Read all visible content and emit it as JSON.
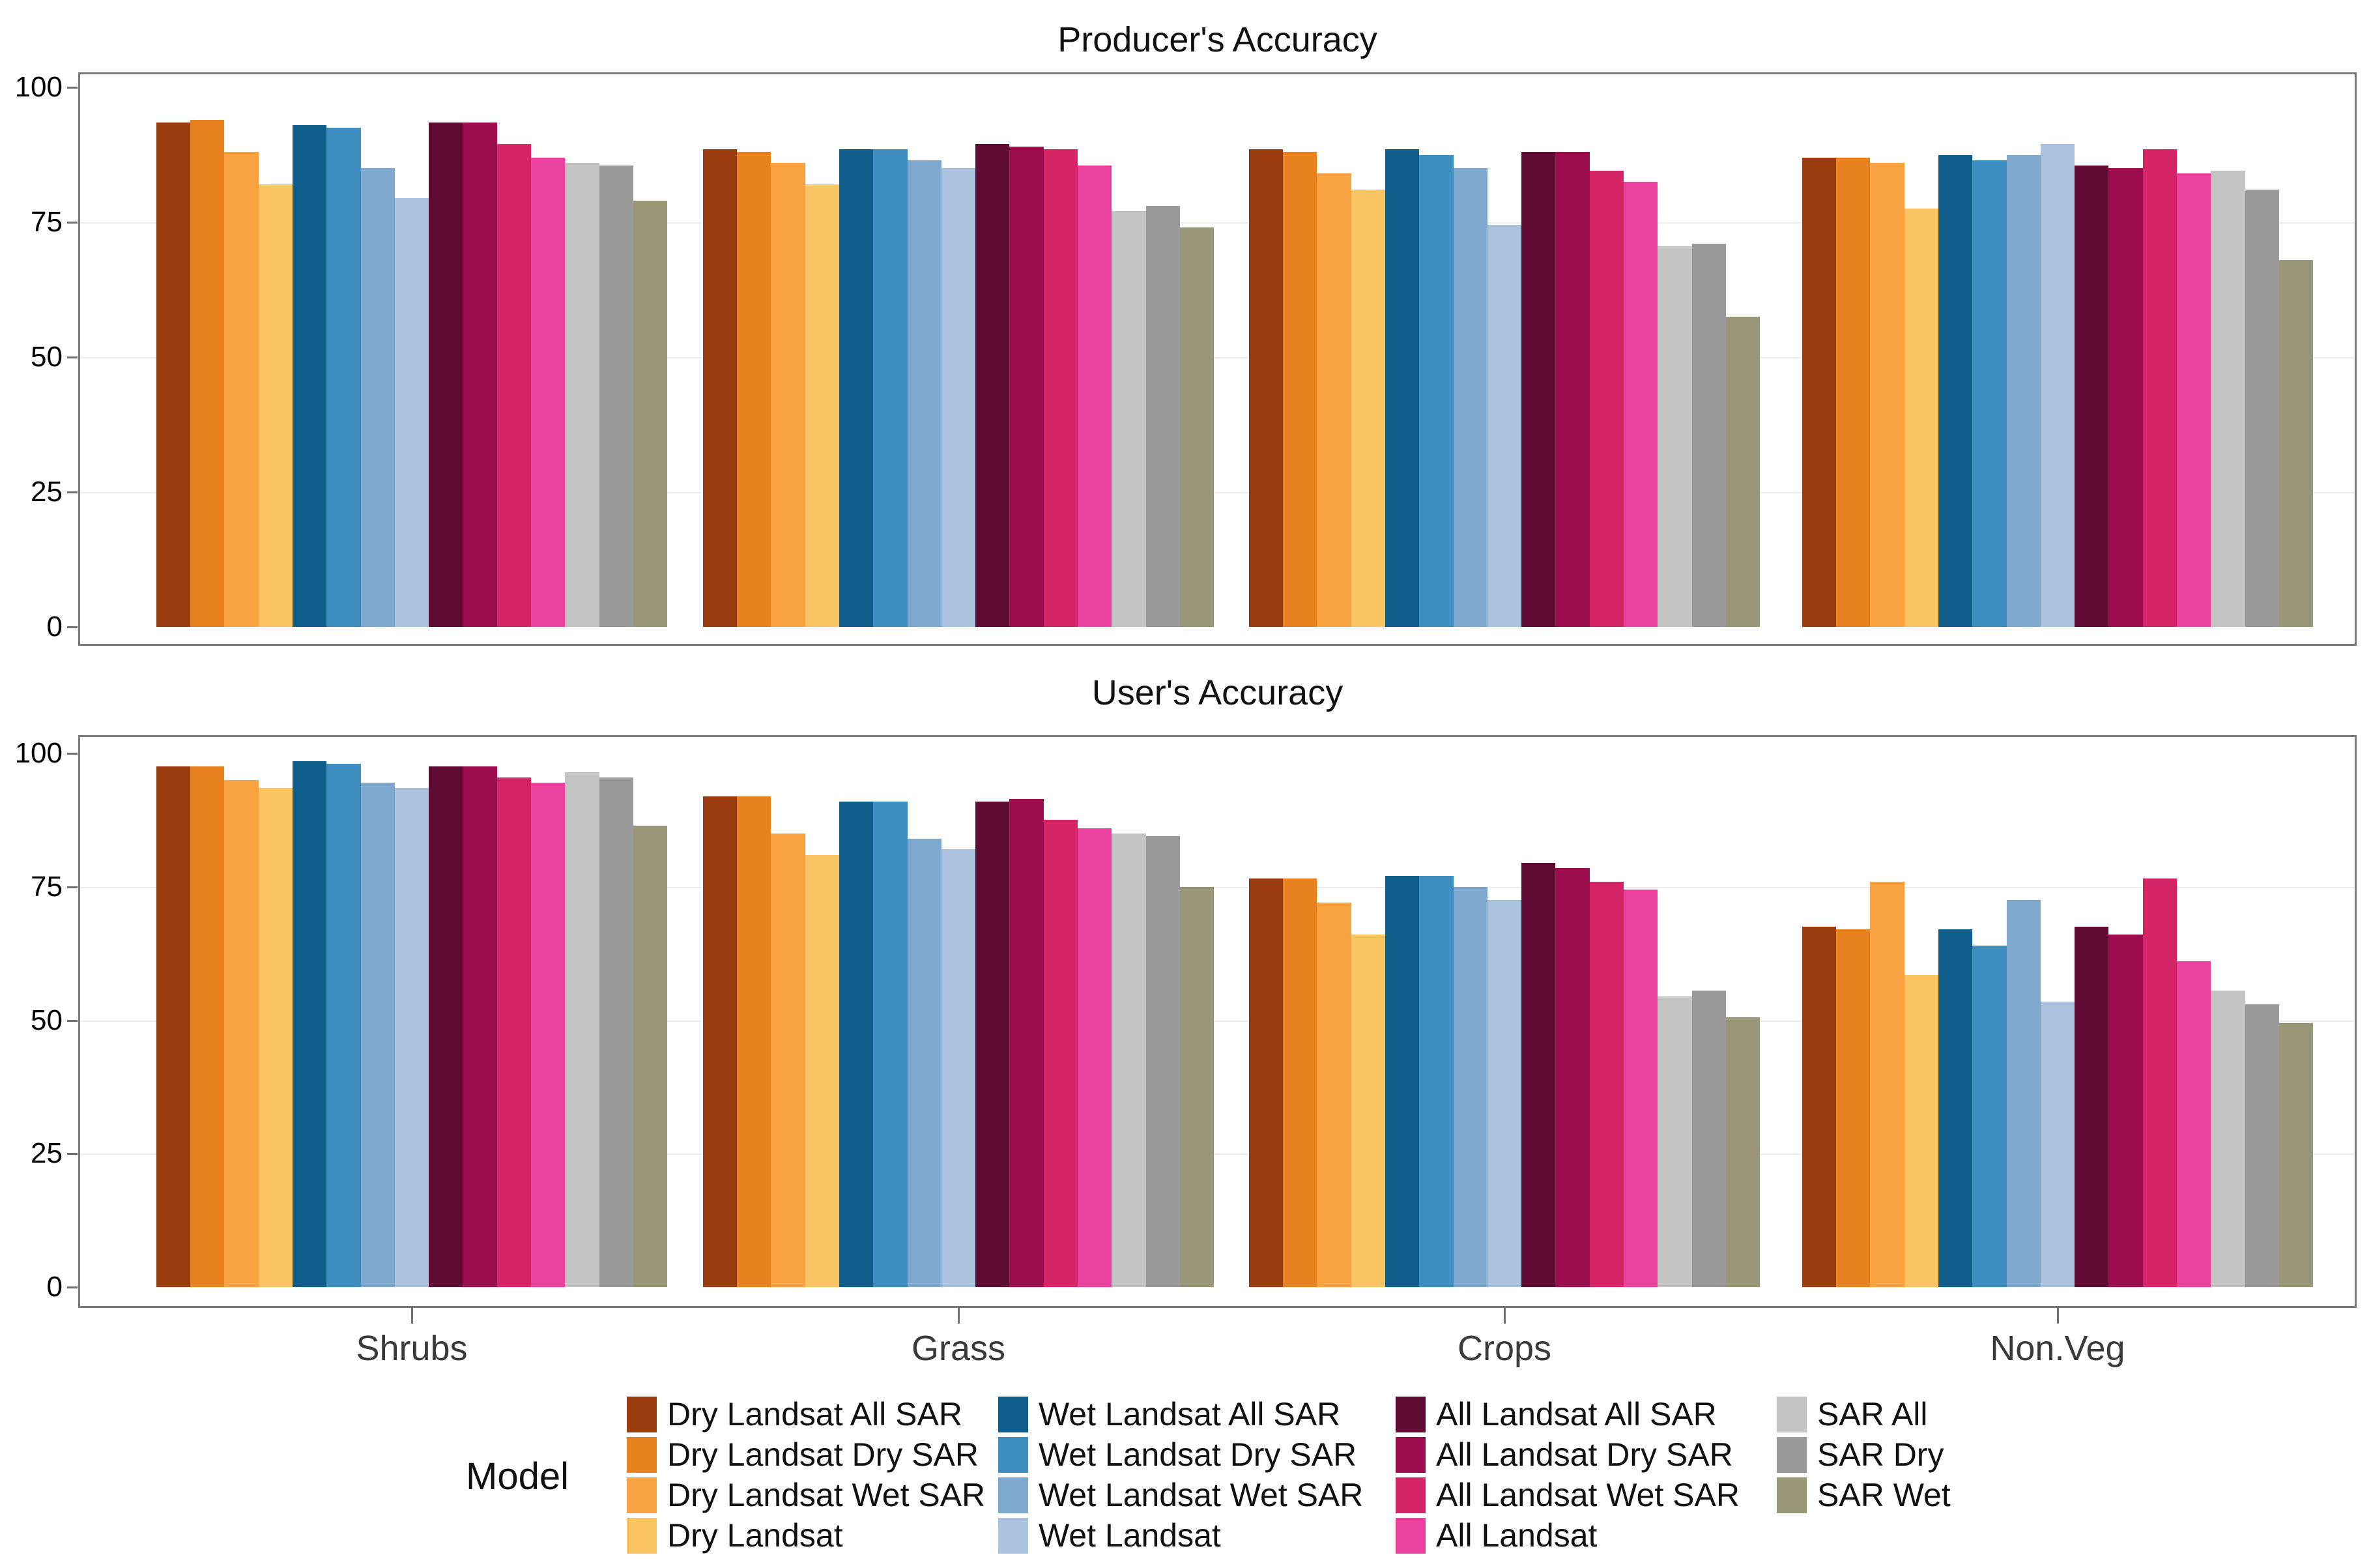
{
  "categories": [
    "Shrubs",
    "Grass",
    "Crops",
    "Non.Veg"
  ],
  "y_axis": {
    "range": [
      0,
      100
    ],
    "ticks": [
      0,
      25,
      50,
      75,
      100
    ],
    "gridlines": [
      25,
      50,
      75
    ]
  },
  "models": [
    {
      "name": "Dry Landsat All SAR",
      "color": "#9A3B10"
    },
    {
      "name": "Dry Landsat Dry SAR",
      "color": "#E8821F"
    },
    {
      "name": "Dry Landsat Wet SAR",
      "color": "#F9A242"
    },
    {
      "name": "Dry Landsat",
      "color": "#FBC462"
    },
    {
      "name": "Wet Landsat All SAR",
      "color": "#0F5E8C"
    },
    {
      "name": "Wet Landsat Dry SAR",
      "color": "#3E8EC0"
    },
    {
      "name": "Wet Landsat Wet SAR",
      "color": "#7FA8CE"
    },
    {
      "name": "Wet Landsat",
      "color": "#ACC3E0"
    },
    {
      "name": "All Landsat All SAR",
      "color": "#5F0B33"
    },
    {
      "name": "All Landsat Dry SAR",
      "color": "#9D0E4F"
    },
    {
      "name": "All Landsat Wet SAR",
      "color": "#D62566"
    },
    {
      "name": "All Landsat",
      "color": "#E9419D"
    },
    {
      "name": "SAR All",
      "color": "#C4C4C4"
    },
    {
      "name": "SAR Dry",
      "color": "#9A9A9A"
    },
    {
      "name": "SAR Wet",
      "color": "#9A9778"
    }
  ],
  "legend": {
    "title": "Model",
    "columns": [
      [
        "Dry Landsat All SAR",
        "Dry Landsat Dry SAR",
        "Dry Landsat Wet SAR",
        "Dry Landsat"
      ],
      [
        "Wet Landsat All SAR",
        "Wet Landsat Dry SAR",
        "Wet Landsat Wet SAR",
        "Wet Landsat"
      ],
      [
        "All Landsat All SAR",
        "All Landsat Dry SAR",
        "All Landsat Wet SAR",
        "All Landsat"
      ],
      [
        "SAR All",
        "SAR Dry",
        "SAR Wet"
      ]
    ]
  },
  "chart_data": [
    {
      "type": "bar",
      "title": "Producer's Accuracy",
      "categories": [
        "Shrubs",
        "Grass",
        "Crops",
        "Non.Veg"
      ],
      "ylim": [
        0,
        100
      ],
      "legend_position": "bottom",
      "series": [
        {
          "name": "Dry Landsat All SAR",
          "values": [
            93.5,
            88.5,
            88.5,
            87
          ]
        },
        {
          "name": "Dry Landsat Dry SAR",
          "values": [
            94,
            88,
            88,
            87
          ]
        },
        {
          "name": "Dry Landsat Wet SAR",
          "values": [
            88,
            86,
            84,
            86
          ]
        },
        {
          "name": "Dry Landsat",
          "values": [
            82,
            82,
            81,
            77.5
          ]
        },
        {
          "name": "Wet Landsat All SAR",
          "values": [
            93,
            88.5,
            88.5,
            87.5
          ]
        },
        {
          "name": "Wet Landsat Dry SAR",
          "values": [
            92.5,
            88.5,
            87.5,
            86.5
          ]
        },
        {
          "name": "Wet Landsat Wet SAR",
          "values": [
            85,
            86.5,
            85,
            87.5
          ]
        },
        {
          "name": "Wet Landsat",
          "values": [
            79.5,
            85,
            74.5,
            89.5
          ]
        },
        {
          "name": "All Landsat All SAR",
          "values": [
            93.5,
            89.5,
            88,
            85.5
          ]
        },
        {
          "name": "All Landsat Dry SAR",
          "values": [
            93.5,
            89,
            88,
            85
          ]
        },
        {
          "name": "All Landsat Wet SAR",
          "values": [
            89.5,
            88.5,
            84.5,
            88.5
          ]
        },
        {
          "name": "All Landsat",
          "values": [
            87,
            85.5,
            82.5,
            84
          ]
        },
        {
          "name": "SAR All",
          "values": [
            86,
            77,
            70.5,
            84.5
          ]
        },
        {
          "name": "SAR Dry",
          "values": [
            85.5,
            78,
            71,
            81
          ]
        },
        {
          "name": "SAR Wet",
          "values": [
            79,
            74,
            57.5,
            68
          ]
        }
      ]
    },
    {
      "type": "bar",
      "title": "User's Accuracy",
      "categories": [
        "Shrubs",
        "Grass",
        "Crops",
        "Non.Veg"
      ],
      "ylim": [
        0,
        100
      ],
      "legend_position": "bottom",
      "series": [
        {
          "name": "Dry Landsat All SAR",
          "values": [
            97.5,
            92,
            76.5,
            67.5
          ]
        },
        {
          "name": "Dry Landsat Dry SAR",
          "values": [
            97.5,
            92,
            76.5,
            67
          ]
        },
        {
          "name": "Dry Landsat Wet SAR",
          "values": [
            95,
            85,
            72,
            76
          ]
        },
        {
          "name": "Dry Landsat",
          "values": [
            93.5,
            81,
            66,
            58.5
          ]
        },
        {
          "name": "Wet Landsat All SAR",
          "values": [
            98.5,
            91,
            77,
            67
          ]
        },
        {
          "name": "Wet Landsat Dry SAR",
          "values": [
            98,
            91,
            77,
            64
          ]
        },
        {
          "name": "Wet Landsat Wet SAR",
          "values": [
            94.5,
            84,
            75,
            72.5
          ]
        },
        {
          "name": "Wet Landsat",
          "values": [
            93.5,
            82,
            72.5,
            53.5
          ]
        },
        {
          "name": "All Landsat All SAR",
          "values": [
            97.5,
            91,
            79.5,
            67.5
          ]
        },
        {
          "name": "All Landsat Dry SAR",
          "values": [
            97.5,
            91.5,
            78.5,
            66
          ]
        },
        {
          "name": "All Landsat Wet SAR",
          "values": [
            95.5,
            87.5,
            76,
            76.5
          ]
        },
        {
          "name": "All Landsat",
          "values": [
            94.5,
            86,
            74.5,
            61
          ]
        },
        {
          "name": "SAR All",
          "values": [
            96.5,
            85,
            54.5,
            55.5
          ]
        },
        {
          "name": "SAR Dry",
          "values": [
            95.5,
            84.5,
            55.5,
            53
          ]
        },
        {
          "name": "SAR Wet",
          "values": [
            86.5,
            75,
            50.5,
            49.5
          ]
        }
      ]
    }
  ]
}
